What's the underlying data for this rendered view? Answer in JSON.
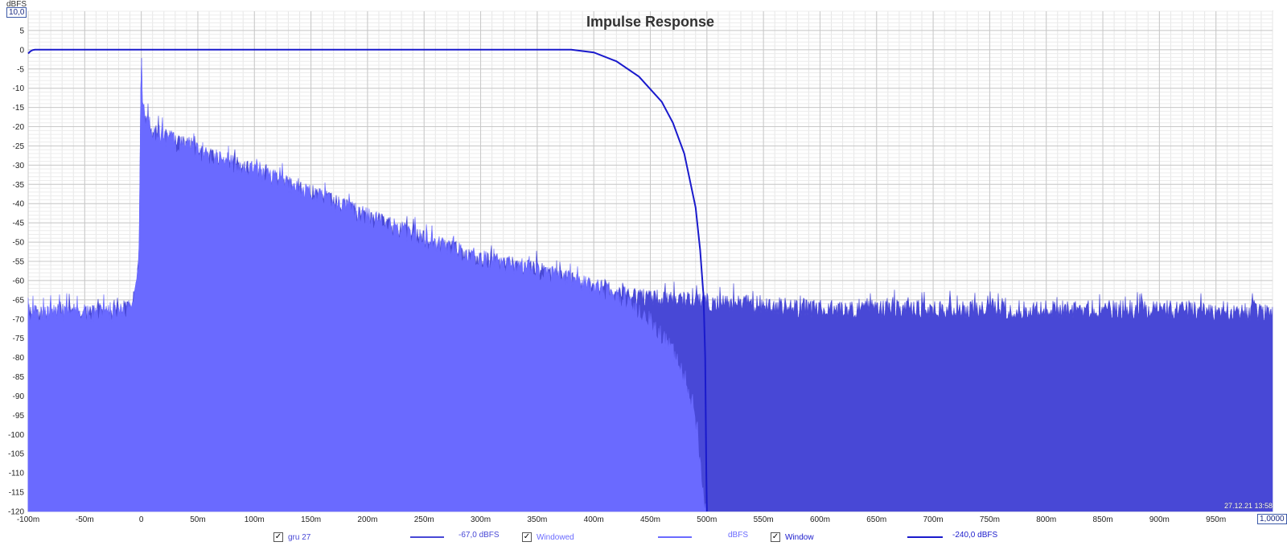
{
  "chart_data": {
    "type": "area",
    "title": "Impulse Response",
    "ylabel_unit": "dBFS",
    "ymax_box": "10,0",
    "xmax_box": "1,0000",
    "x_range_ms": [
      -100,
      1000
    ],
    "y_range_db": [
      -120,
      10
    ],
    "grid": true,
    "x_ticks": [
      "-100m",
      "-50m",
      "0",
      "50m",
      "100m",
      "150m",
      "200m",
      "250m",
      "300m",
      "350m",
      "400m",
      "450m",
      "500m",
      "550m",
      "600m",
      "650m",
      "700m",
      "750m",
      "800m",
      "850m",
      "900m",
      "950m"
    ],
    "x_tick_values": [
      -100,
      -50,
      0,
      50,
      100,
      150,
      200,
      250,
      300,
      350,
      400,
      450,
      500,
      550,
      600,
      650,
      700,
      750,
      800,
      850,
      900,
      950
    ],
    "y_ticks": [
      "5",
      "0",
      "-5",
      "-10",
      "-15",
      "-20",
      "-25",
      "-30",
      "-35",
      "-40",
      "-45",
      "-50",
      "-55",
      "-60",
      "-65",
      "-70",
      "-75",
      "-80",
      "-85",
      "-90",
      "-95",
      "-100",
      "-105",
      "-110",
      "-115",
      "-120"
    ],
    "y_tick_values": [
      5,
      0,
      -5,
      -10,
      -15,
      -20,
      -25,
      -30,
      -35,
      -40,
      -45,
      -50,
      -55,
      -60,
      -65,
      -70,
      -75,
      -80,
      -85,
      -90,
      -95,
      -100,
      -105,
      -110,
      -115,
      -120
    ],
    "series": [
      {
        "name": "gru 27",
        "kind": "filled",
        "color": "#4848d6",
        "envelope_x_ms": [
          -100,
          -20,
          -10,
          -5,
          -2,
          0,
          1,
          10,
          50,
          100,
          150,
          200,
          250,
          300,
          350,
          400,
          450,
          500,
          600,
          700,
          800,
          900,
          1000
        ],
        "envelope_y_db": [
          -66,
          -66,
          -64,
          -61,
          -52,
          2,
          -14,
          -19,
          -24,
          -29,
          -35,
          -41,
          -47,
          -52,
          -55,
          -59,
          -62,
          -63,
          -65,
          -65,
          -65,
          -65,
          -66
        ]
      },
      {
        "name": "Windowed",
        "kind": "filled",
        "color": "#6a6aff",
        "envelope_x_ms": [
          -100,
          -20,
          -10,
          -5,
          -2,
          0,
          1,
          10,
          50,
          100,
          150,
          200,
          250,
          300,
          350,
          400,
          430,
          450,
          470,
          480,
          490,
          495,
          498,
          500
        ],
        "envelope_y_db": [
          -66,
          -66,
          -64,
          -61,
          -52,
          2,
          -14,
          -19,
          -24,
          -29,
          -35,
          -41,
          -47,
          -52,
          -55,
          -59,
          -63,
          -68,
          -76,
          -83,
          -95,
          -108,
          -118,
          -120
        ]
      },
      {
        "name": "Window",
        "kind": "line",
        "color": "#1a1acc",
        "x_ms": [
          -100,
          -98,
          -96,
          -94,
          -92,
          0,
          100,
          200,
          300,
          380,
          400,
          420,
          440,
          460,
          470,
          480,
          490,
          494,
          497,
          498.5,
          499.5,
          500
        ],
        "y_db": [
          -1,
          -0.4,
          -0.1,
          0,
          0,
          0,
          0,
          0,
          0,
          0,
          -0.7,
          -3,
          -7,
          -13.5,
          -19,
          -27,
          -41,
          -52,
          -64,
          -80,
          -110,
          -120
        ]
      }
    ]
  },
  "legend": {
    "items": [
      {
        "label": "gru 27",
        "checked": "✓",
        "level": "-67,0 dBFS",
        "color": "#4848d6"
      },
      {
        "label": "Windowed",
        "checked": "✓",
        "level": "dBFS",
        "color": "#6a6aff"
      },
      {
        "label": "Window",
        "checked": "✓",
        "level": "-240,0 dBFS",
        "color": "#1a1acc"
      }
    ]
  },
  "timestamp": "27.12.21 13:58"
}
